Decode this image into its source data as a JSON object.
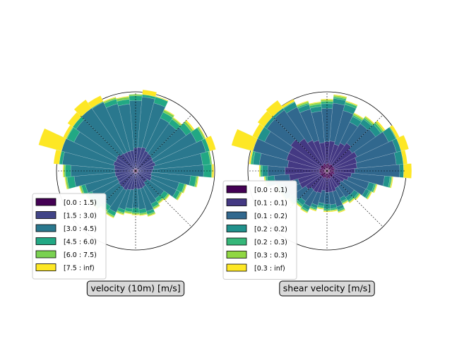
{
  "chart_data": [
    {
      "type": "windrose",
      "title": "velocity (10m) [m/s]",
      "direction_bins": 36,
      "direction_unit": "degrees clockwise from north, 10-degree sectors",
      "legend": {
        "placement": "lower-left",
        "entries": [
          "[0.0 : 1.5)",
          "[1.5 : 3.0)",
          "[3.0 : 4.5)",
          "[4.5 : 6.0)",
          "[6.0 : 7.5)",
          "[7.5 : inf)"
        ],
        "colors": [
          "#440154",
          "#414487",
          "#2a788e",
          "#22a884",
          "#7ad151",
          "#fde725"
        ]
      },
      "radial_gridlines": false,
      "directions_deg": [
        0,
        10,
        20,
        30,
        40,
        50,
        60,
        70,
        80,
        90,
        100,
        110,
        120,
        130,
        140,
        150,
        160,
        170,
        180,
        190,
        200,
        210,
        220,
        230,
        240,
        250,
        260,
        270,
        280,
        290,
        300,
        310,
        320,
        330,
        340,
        350
      ],
      "series": [
        {
          "values": [
            0.03,
            0.03,
            0.03,
            0.03,
            0.03,
            0.03,
            0.03,
            0.03,
            0.03,
            0.03,
            0.03,
            0.03,
            0.03,
            0.03,
            0.03,
            0.03,
            0.03,
            0.03,
            0.03,
            0.03,
            0.03,
            0.03,
            0.03,
            0.03,
            0.03,
            0.03,
            0.03,
            0.03,
            0.03,
            0.03,
            0.03,
            0.03,
            0.03,
            0.03,
            0.03,
            0.03
          ]
        },
        {
          "values": [
            0.26,
            0.27,
            0.28,
            0.25,
            0.24,
            0.23,
            0.22,
            0.23,
            0.2,
            0.18,
            0.17,
            0.18,
            0.19,
            0.15,
            0.15,
            0.19,
            0.2,
            0.2,
            0.19,
            0.21,
            0.22,
            0.24,
            0.23,
            0.23,
            0.22,
            0.22,
            0.23,
            0.23,
            0.24,
            0.26,
            0.25,
            0.26,
            0.24,
            0.23,
            0.23,
            0.23
          ]
        },
        {
          "values": [
            0.6,
            0.64,
            0.58,
            0.46,
            0.46,
            0.52,
            0.6,
            0.66,
            0.62,
            0.65,
            0.5,
            0.36,
            0.35,
            0.26,
            0.25,
            0.24,
            0.3,
            0.26,
            0.25,
            0.24,
            0.26,
            0.31,
            0.29,
            0.34,
            0.36,
            0.41,
            0.52,
            0.56,
            0.66,
            0.8,
            0.58,
            0.63,
            0.7,
            0.7,
            0.62,
            0.59
          ]
        },
        {
          "values": [
            0.06,
            0.06,
            0.08,
            0.08,
            0.07,
            0.08,
            0.1,
            0.11,
            0.1,
            0.1,
            0.07,
            0.07,
            0.05,
            0.06,
            0.05,
            0.05,
            0.04,
            0.05,
            0.06,
            0.04,
            0.04,
            0.05,
            0.06,
            0.06,
            0.06,
            0.05,
            0.09,
            0.07,
            0.08,
            0.12,
            0.1,
            0.09,
            0.1,
            0.07,
            0.06,
            0.06
          ]
        },
        {
          "values": [
            0.02,
            0.03,
            0.01,
            0.03,
            0.02,
            0.03,
            0.03,
            0.02,
            0.02,
            0.03,
            0.02,
            0.02,
            0.02,
            0.02,
            0.02,
            0.02,
            0.02,
            0.02,
            0.02,
            0.02,
            0.02,
            0.02,
            0.02,
            0.02,
            0.02,
            0.02,
            0.02,
            0.02,
            0.03,
            0.06,
            0.05,
            0.04,
            0.03,
            0.02,
            0.02,
            0.03
          ]
        },
        {
          "values": [
            0.01,
            0.01,
            0.01,
            0.01,
            0.01,
            0.02,
            0.02,
            0.02,
            0.01,
            0.02,
            0.01,
            0.01,
            0.01,
            0.01,
            0.01,
            0.01,
            0.01,
            0.01,
            0.01,
            0.01,
            0.01,
            0.01,
            0.01,
            0.01,
            0.01,
            0.01,
            0.01,
            0.01,
            0.01,
            0.01,
            0.01,
            0.01,
            0.01,
            0.01,
            0.01,
            0.01
          ]
        }
      ]
    },
    {
      "type": "windrose",
      "title": "shear velocity [m/s]",
      "direction_bins": 36,
      "direction_unit": "degrees clockwise from north, 10-degree sectors",
      "legend": {
        "placement": "lower-left",
        "entries": [
          "[0.0 : 0.1)",
          "[0.1 : 0.1)",
          "[0.1 : 0.2)",
          "[0.2 : 0.2)",
          "[0.2 : 0.3)",
          "[0.3 : 0.3)",
          "[0.3 : inf)"
        ],
        "colors": [
          "#440154",
          "#443983",
          "#31688e",
          "#21918c",
          "#35b779",
          "#90d743",
          "#fde725"
        ]
      },
      "radial_gridlines": false,
      "directions_deg": [
        0,
        10,
        20,
        30,
        40,
        50,
        60,
        70,
        80,
        90,
        100,
        110,
        120,
        130,
        140,
        150,
        160,
        170,
        180,
        190,
        200,
        210,
        220,
        230,
        240,
        250,
        260,
        270,
        280,
        290,
        300,
        310,
        320,
        330,
        340,
        350
      ],
      "series": [
        {
          "values": [
            0.09,
            0.1,
            0.08,
            0.09,
            0.1,
            0.08,
            0.1,
            0.09,
            0.1,
            0.08,
            0.09,
            0.1,
            0.08,
            0.09,
            0.1,
            0.08,
            0.1,
            0.09,
            0.1,
            0.08,
            0.09,
            0.1,
            0.08,
            0.09,
            0.1,
            0.08,
            0.1,
            0.09,
            0.1,
            0.08,
            0.09,
            0.1,
            0.08,
            0.09,
            0.1,
            0.08
          ]
        },
        {
          "values": [
            0.28,
            0.28,
            0.27,
            0.3,
            0.33,
            0.31,
            0.32,
            0.3,
            0.28,
            0.27,
            0.22,
            0.18,
            0.16,
            0.13,
            0.14,
            0.16,
            0.17,
            0.18,
            0.17,
            0.17,
            0.2,
            0.2,
            0.21,
            0.24,
            0.28,
            0.3,
            0.38,
            0.44,
            0.4,
            0.45,
            0.44,
            0.46,
            0.42,
            0.34,
            0.3,
            0.28
          ]
        },
        {
          "values": [
            0.42,
            0.48,
            0.44,
            0.29,
            0.3,
            0.36,
            0.44,
            0.52,
            0.5,
            0.57,
            0.42,
            0.27,
            0.3,
            0.2,
            0.17,
            0.14,
            0.2,
            0.16,
            0.15,
            0.16,
            0.16,
            0.2,
            0.18,
            0.18,
            0.17,
            0.2,
            0.19,
            0.22,
            0.36,
            0.52,
            0.34,
            0.37,
            0.44,
            0.46,
            0.41,
            0.4
          ]
        },
        {
          "values": [
            0.06,
            0.06,
            0.08,
            0.08,
            0.07,
            0.08,
            0.1,
            0.11,
            0.1,
            0.1,
            0.07,
            0.07,
            0.05,
            0.06,
            0.05,
            0.05,
            0.04,
            0.05,
            0.06,
            0.04,
            0.04,
            0.05,
            0.06,
            0.06,
            0.06,
            0.05,
            0.09,
            0.07,
            0.08,
            0.12,
            0.1,
            0.09,
            0.1,
            0.07,
            0.06,
            0.06
          ]
        },
        {
          "values": [
            0.03,
            0.02,
            0.03,
            0.02,
            0.02,
            0.03,
            0.03,
            0.03,
            0.02,
            0.03,
            0.02,
            0.02,
            0.02,
            0.02,
            0.02,
            0.02,
            0.02,
            0.02,
            0.02,
            0.02,
            0.02,
            0.02,
            0.02,
            0.02,
            0.02,
            0.02,
            0.02,
            0.02,
            0.03,
            0.04,
            0.04,
            0.03,
            0.03,
            0.02,
            0.02,
            0.03
          ]
        },
        {
          "values": [
            0.02,
            0.02,
            0.01,
            0.02,
            0.02,
            0.02,
            0.02,
            0.02,
            0.02,
            0.02,
            0.01,
            0.01,
            0.01,
            0.01,
            0.01,
            0.01,
            0.01,
            0.01,
            0.01,
            0.01,
            0.01,
            0.01,
            0.01,
            0.01,
            0.01,
            0.01,
            0.01,
            0.01,
            0.02,
            0.04,
            0.03,
            0.02,
            0.02,
            0.02,
            0.02,
            0.02
          ]
        },
        {
          "values": [
            0.01,
            0.01,
            0.01,
            0.01,
            0.01,
            0.02,
            0.02,
            0.02,
            0.01,
            0.02,
            0.01,
            0.01,
            0.01,
            0.01,
            0.01,
            0.01,
            0.01,
            0.01,
            0.01,
            0.01,
            0.01,
            0.01,
            0.01,
            0.01,
            0.01,
            0.01,
            0.01,
            0.01,
            0.01,
            0.01,
            0.01,
            0.01,
            0.01,
            0.01,
            0.01,
            0.01
          ]
        }
      ]
    }
  ],
  "style": {
    "axis_color": "#000000",
    "title_box_fill": "#d9d9d9",
    "legend_border": "#cccccc"
  }
}
